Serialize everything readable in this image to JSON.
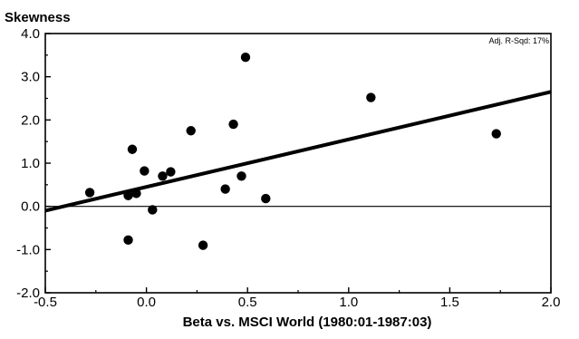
{
  "chart_data": {
    "type": "scatter",
    "ylabel": "Skewness",
    "xlabel": "Beta vs. MSCI World (1980:01-1987:03)",
    "annotation": "Adj. R-Sqd: 17%",
    "xlim": [
      -0.5,
      2.0
    ],
    "ylim": [
      -2.0,
      4.0
    ],
    "xticks": [
      -0.5,
      0.0,
      0.5,
      1.0,
      1.5,
      2.0
    ],
    "xtick_labels": [
      "-0.5",
      "0.0",
      "0.5",
      "1.0",
      "1.5",
      "2.0"
    ],
    "yticks": [
      4.0,
      3.0,
      2.0,
      1.0,
      0.0,
      -1.0,
      -2.0
    ],
    "ytick_labels": [
      "4.0",
      "3.0",
      "2.0",
      "1.0",
      "0.0",
      "-1.0",
      "-2.0"
    ],
    "reference_line_y": 0.0,
    "regression_line": {
      "x": [
        -0.5,
        2.0
      ],
      "y": [
        -0.1,
        2.65
      ]
    },
    "points": [
      {
        "x": -0.28,
        "y": 0.32
      },
      {
        "x": -0.09,
        "y": 0.25
      },
      {
        "x": -0.07,
        "y": 1.32
      },
      {
        "x": -0.05,
        "y": 0.3
      },
      {
        "x": -0.01,
        "y": 0.82
      },
      {
        "x": 0.03,
        "y": -0.08
      },
      {
        "x": 0.08,
        "y": 0.7
      },
      {
        "x": 0.12,
        "y": 0.8
      },
      {
        "x": -0.09,
        "y": -0.78
      },
      {
        "x": 0.22,
        "y": 1.75
      },
      {
        "x": 0.28,
        "y": -0.9
      },
      {
        "x": 0.39,
        "y": 0.4
      },
      {
        "x": 0.43,
        "y": 1.9
      },
      {
        "x": 0.47,
        "y": 0.7
      },
      {
        "x": 0.49,
        "y": 3.45
      },
      {
        "x": 0.59,
        "y": 0.18
      },
      {
        "x": 1.11,
        "y": 2.52
      },
      {
        "x": 1.73,
        "y": 1.68
      }
    ],
    "grid": false,
    "legend": "none"
  }
}
